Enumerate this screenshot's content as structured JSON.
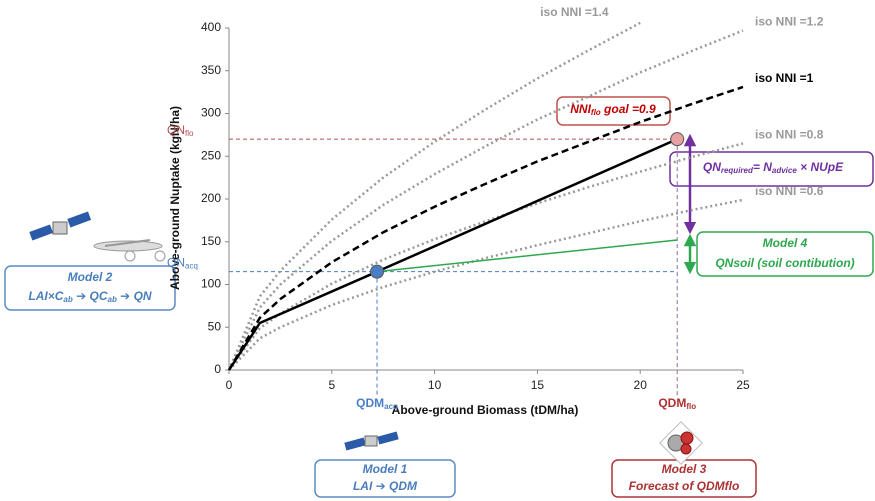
{
  "chart_data": {
    "type": "line",
    "x_label": "Above-ground Biomass (tDM/ha)",
    "y_label": "Above-ground Nuptake (kgN/ha)",
    "xlim": [
      0,
      25
    ],
    "ylim": [
      0,
      400
    ],
    "xticks": [
      0,
      5,
      10,
      15,
      20,
      25
    ],
    "yticks": [
      0,
      50,
      100,
      150,
      200,
      250,
      300,
      350,
      400
    ],
    "series": [
      {
        "name": "iso NNI =1.4",
        "color": "#999999",
        "style": "dotted",
        "x": [
          0,
          1.5,
          2.5,
          5,
          7.5,
          10,
          12.5,
          15,
          17.5,
          20
        ],
        "values": [
          0,
          86,
          116,
          176,
          225,
          267,
          305,
          341,
          374,
          406
        ]
      },
      {
        "name": "iso NNI =1.2",
        "color": "#999999",
        "style": "dotted",
        "x": [
          0,
          1.5,
          2.5,
          5,
          7.5,
          10,
          12.5,
          15,
          17.5,
          20,
          22.5,
          25
        ],
        "values": [
          0,
          73,
          100,
          151,
          193,
          229,
          262,
          293,
          320,
          348,
          373,
          397
        ]
      },
      {
        "name": "iso NNI =1",
        "color": "#000000",
        "style": "dashed",
        "x": [
          0,
          1.5,
          2.5,
          5,
          7.5,
          10,
          12.5,
          15,
          17.5,
          20,
          22.5,
          25
        ],
        "values": [
          0,
          61,
          83,
          126,
          161,
          191,
          218,
          244,
          267,
          290,
          311,
          331
        ]
      },
      {
        "name": "iso NNI =0.8",
        "color": "#999999",
        "style": "dotted",
        "x": [
          0,
          1.5,
          2.5,
          5,
          7.5,
          10,
          12.5,
          15,
          17.5,
          20,
          22.5,
          25
        ],
        "values": [
          0,
          49,
          66,
          101,
          129,
          153,
          174,
          195,
          214,
          232,
          249,
          265
        ]
      },
      {
        "name": "iso NNI =0.6",
        "color": "#999999",
        "style": "dotted",
        "x": [
          0,
          1.5,
          2.5,
          5,
          7.5,
          10,
          12.5,
          15,
          17.5,
          20,
          22.5,
          25
        ],
        "values": [
          0,
          37,
          50,
          76,
          97,
          115,
          131,
          146,
          160,
          174,
          187,
          199
        ]
      },
      {
        "color": "#000000",
        "style": "solid",
        "x": [
          0,
          1.5,
          7.2,
          21.8
        ],
        "values": [
          0,
          55,
          115,
          270
        ]
      },
      {
        "color": "#2ea84f",
        "style": "thin",
        "x": [
          7.2,
          21.8
        ],
        "values": [
          115,
          152
        ]
      }
    ],
    "points": [
      {
        "x": 7.2,
        "y": 115,
        "color": "#4a7ec4"
      },
      {
        "x": 21.8,
        "y": 270,
        "color": "#e8a0a0"
      }
    ],
    "ref_lines": {
      "qn_flo": {
        "value": 270,
        "parts": [
          "QN",
          "flo"
        ],
        "color": "#b05050"
      },
      "qn_acq": {
        "value": 115,
        "parts": [
          "QN",
          "acq"
        ],
        "color": "#4a7ec4"
      },
      "qdm_acq": {
        "value": 7.2,
        "parts": [
          "QDM",
          "acq"
        ],
        "color": "#4a7ec4"
      },
      "qdm_flo": {
        "value": 21.8,
        "parts": [
          "QDM",
          "flo"
        ],
        "color": "#b03030"
      }
    },
    "annotations": {
      "goal": {
        "parts": [
          "NNI",
          "flo",
          " goal =0.9"
        ]
      },
      "required": {
        "parts": [
          "QN",
          "required",
          "= N",
          "advice",
          " × NUpE"
        ]
      },
      "model4": {
        "title": "Model 4",
        "text": "QNsoil (soil contibution)"
      },
      "model2": {
        "title": "Model 2",
        "parts": [
          "LAI×C",
          "ab",
          " ➔ QC",
          "ab",
          " ➔ QN"
        ]
      },
      "model1": {
        "title": "Model 1",
        "text": "LAI ➔ QDM"
      },
      "model3": {
        "title": "Model 3",
        "text": "Forecast of QDMflo"
      }
    }
  }
}
